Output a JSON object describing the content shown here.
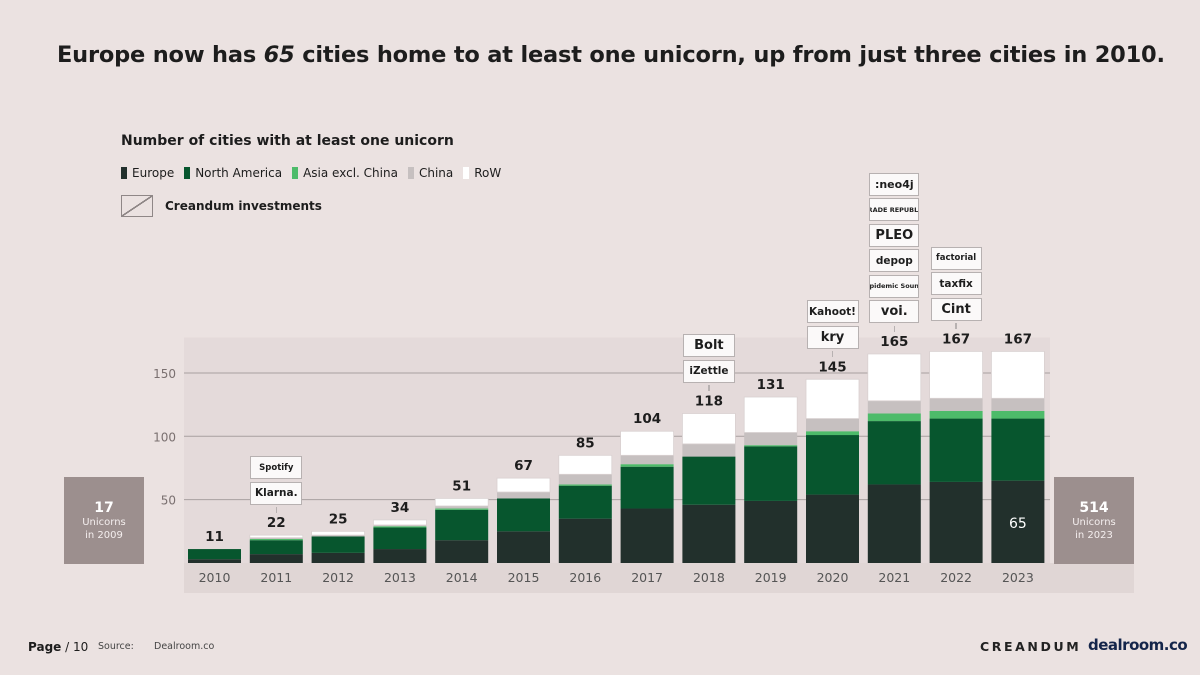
{
  "headline": {
    "prefix": "Europe now has ",
    "emph": "65",
    "suffix": " cities home to at least one unicorn, up from just three cities in 2010."
  },
  "chart_data": {
    "type": "bar",
    "stacked": true,
    "title": "Number of cities with at least one unicorn",
    "categories": [
      "2010",
      "2011",
      "2012",
      "2013",
      "2014",
      "2015",
      "2016",
      "2017",
      "2018",
      "2019",
      "2020",
      "2021",
      "2022",
      "2023"
    ],
    "totals": [
      11,
      22,
      25,
      34,
      51,
      67,
      85,
      104,
      118,
      131,
      145,
      165,
      167,
      167
    ],
    "series": [
      {
        "name": "Europe",
        "color": "#22302c",
        "values": [
          3,
          7,
          8,
          11,
          18,
          25,
          35,
          43,
          46,
          49,
          54,
          62,
          64,
          65
        ]
      },
      {
        "name": "North America",
        "color": "#07562e",
        "values": [
          8,
          11,
          13,
          17,
          24,
          26,
          26,
          33,
          38,
          43,
          47,
          50,
          50,
          49
        ]
      },
      {
        "name": "Asia excl. China",
        "color": "#4dbb6a",
        "values": [
          0,
          1,
          0,
          1,
          1,
          0,
          1,
          2,
          0,
          1,
          3,
          6,
          6,
          6
        ]
      },
      {
        "name": "China",
        "color": "#c6c0c0",
        "values": [
          0,
          1,
          1,
          1,
          2,
          5,
          8,
          7,
          10,
          10,
          10,
          10,
          10,
          10
        ]
      },
      {
        "name": "RoW",
        "color": "#ffffff",
        "values": [
          0,
          2,
          3,
          4,
          6,
          11,
          15,
          19,
          24,
          28,
          31,
          37,
          37,
          37
        ]
      }
    ],
    "yticks": [
      50,
      100,
      150
    ],
    "ylim": [
      0,
      180
    ],
    "annotated_value": {
      "category": "2023",
      "series": "Europe",
      "label": "65"
    },
    "legend_placement": "top-left"
  },
  "legend_extra": "Creandum investments",
  "side_left": {
    "value": "17",
    "line1": "Unicorns",
    "line2": "in 2009"
  },
  "side_right": {
    "value": "514",
    "line1": "Unicorns",
    "line2": "in 2023"
  },
  "logos": [
    {
      "year": "2011",
      "names": [
        "Spotify",
        "Klarna."
      ]
    },
    {
      "year": "2018",
      "names": [
        "Bolt",
        "iZettle"
      ]
    },
    {
      "year": "2020",
      "names": [
        "Kahoot!",
        "kry"
      ]
    },
    {
      "year": "2021",
      "names": [
        ":neo4j",
        "TRADE REPUBLIC",
        "PLEO",
        "depop",
        "Epidemic Sound",
        "voi."
      ]
    },
    {
      "year": "2022",
      "names": [
        "factorial",
        "taxfix",
        "Cint"
      ]
    }
  ],
  "footer": {
    "page_label": "Page",
    "page_number": "/ 10",
    "source_label": "Source:",
    "source_value": "Dealroom.co",
    "brand_left": "CREANDUM",
    "brand_right": "dealroom.co"
  }
}
